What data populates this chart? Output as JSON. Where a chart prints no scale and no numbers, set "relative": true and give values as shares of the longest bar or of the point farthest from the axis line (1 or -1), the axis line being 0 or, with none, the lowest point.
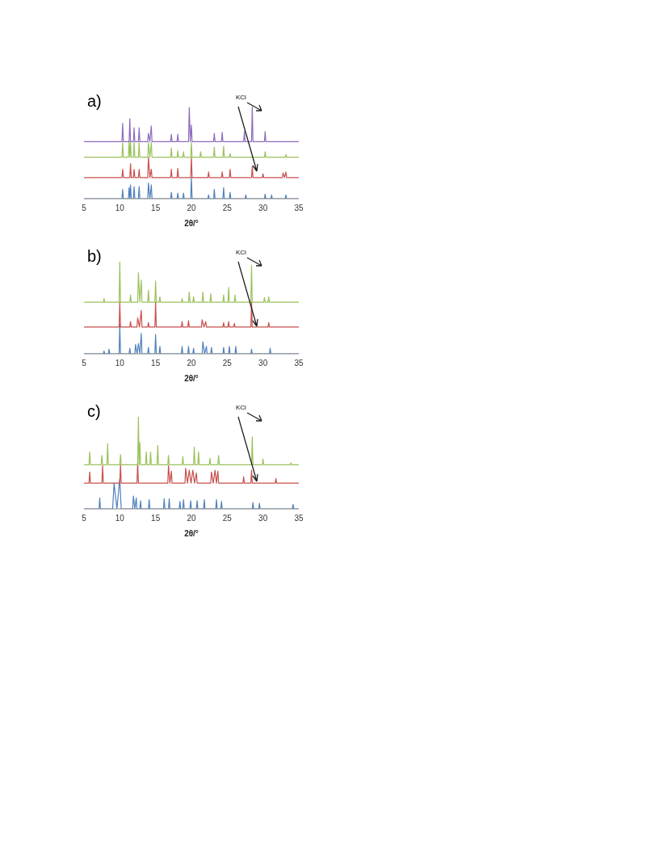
{
  "chart_data": [
    {
      "type": "line",
      "title": "a)",
      "xlabel": "2θ/°",
      "annotations": [
        "KCl"
      ],
      "relative": true,
      "xlim": [
        5,
        35
      ],
      "xticks": [
        5,
        10,
        15,
        20,
        25,
        30,
        35
      ],
      "grid": false,
      "legend": false,
      "marker": "none",
      "line_style": "solid",
      "series": [
        {
          "color": "#4f81bd",
          "x": [
            5,
            10.3,
            10.4,
            10.5,
            11.2,
            11.3,
            11.4,
            11.5,
            11.6,
            11.9,
            12,
            12.1,
            12.6,
            12.7,
            12.8,
            13.9,
            14,
            14.2,
            14.4,
            14.5,
            17.1,
            17.2,
            17.3,
            18,
            18.1,
            18.2,
            18.8,
            18.9,
            19,
            19.9,
            20,
            20.1,
            22.3,
            22.4,
            22.5,
            23.1,
            23.2,
            23.3,
            24.4,
            24.5,
            24.6,
            25.3,
            25.4,
            25.5,
            27.5,
            27.6,
            27.7,
            30.2,
            30.3,
            30.4,
            31.1,
            31.2,
            31.3,
            33.1,
            33.2,
            33.3,
            35
          ],
          "values": [
            0,
            0,
            0.1,
            0,
            0,
            0.12,
            0,
            0.15,
            0,
            0,
            0.13,
            0,
            0,
            0.13,
            0,
            0,
            0.17,
            0,
            0.15,
            0,
            0,
            0.07,
            0,
            0,
            0.06,
            0,
            0,
            0.06,
            0,
            0,
            0.23,
            0,
            0,
            0.04,
            0,
            0,
            0.1,
            0,
            0,
            0.12,
            0,
            0,
            0.07,
            0,
            0,
            0.04,
            0,
            0,
            0.05,
            0,
            0,
            0.04,
            0,
            0,
            0.04,
            0,
            0
          ]
        },
        {
          "color": "#c8504d",
          "x": [
            5,
            10.3,
            10.4,
            10.5,
            11.4,
            11.5,
            11.6,
            11.9,
            12,
            12.1,
            12.6,
            12.7,
            12.8,
            13.9,
            14,
            14.2,
            14.4,
            14.5,
            17.1,
            17.2,
            17.3,
            18,
            18.1,
            18.2,
            19.9,
            20,
            20.1,
            22.3,
            22.4,
            22.5,
            24.2,
            24.3,
            24.4,
            25.3,
            25.4,
            25.5,
            28.4,
            28.5,
            28.6,
            29.9,
            30,
            30.1,
            32.7,
            32.8,
            33,
            33.2,
            33.3,
            35
          ],
          "values": [
            0.23,
            0.23,
            0.32,
            0.23,
            0.23,
            0.38,
            0.23,
            0.23,
            0.32,
            0.23,
            0.23,
            0.32,
            0.23,
            0.23,
            0.45,
            0.23,
            0.32,
            0.23,
            0.23,
            0.32,
            0.23,
            0.23,
            0.33,
            0.23,
            0.23,
            0.45,
            0.23,
            0.23,
            0.29,
            0.23,
            0.23,
            0.29,
            0.23,
            0.23,
            0.32,
            0.23,
            0.23,
            0.35,
            0.23,
            0.23,
            0.27,
            0.23,
            0.23,
            0.28,
            0.23,
            0.29,
            0.23,
            0.23
          ]
        },
        {
          "color": "#9bc25b",
          "x": [
            5,
            10.3,
            10.4,
            10.5,
            11.2,
            11.3,
            11.4,
            11.5,
            11.6,
            11.9,
            12,
            12.1,
            12.6,
            12.7,
            12.8,
            13.9,
            14,
            14.2,
            14.4,
            14.5,
            17.1,
            17.2,
            17.3,
            18,
            18.1,
            18.2,
            18.8,
            18.9,
            19,
            19.9,
            20,
            20.1,
            21.2,
            21.3,
            21.4,
            23.1,
            23.2,
            23.3,
            24.4,
            24.5,
            24.6,
            25.3,
            25.4,
            25.5,
            30.2,
            30.3,
            30.4,
            33.1,
            33.2,
            33.3,
            35
          ],
          "values": [
            0.45,
            0.45,
            0.61,
            0.45,
            0.45,
            0.63,
            0.45,
            0.61,
            0.45,
            0.45,
            0.61,
            0.45,
            0.45,
            0.61,
            0.45,
            0.45,
            0.61,
            0.45,
            0.61,
            0.45,
            0.45,
            0.55,
            0.45,
            0.45,
            0.52,
            0.45,
            0.45,
            0.51,
            0.45,
            0.45,
            0.61,
            0.45,
            0.45,
            0.51,
            0.45,
            0.45,
            0.56,
            0.45,
            0.45,
            0.57,
            0.45,
            0.45,
            0.49,
            0.45,
            0.45,
            0.51,
            0.45,
            0.45,
            0.48,
            0.45,
            0.45
          ]
        },
        {
          "color": "#8e6bbf",
          "x": [
            5,
            10.3,
            10.4,
            10.5,
            11.3,
            11.4,
            11.5,
            11.9,
            12,
            12.1,
            12.6,
            12.7,
            12.8,
            13.9,
            14,
            14.2,
            14.4,
            14.5,
            17.1,
            17.2,
            17.3,
            18,
            18.1,
            18.2,
            19.6,
            19.7,
            19.85,
            20,
            20.1,
            23.1,
            23.2,
            23.3,
            24.2,
            24.3,
            24.4,
            27.3,
            27.4,
            27.5,
            28.4,
            28.5,
            28.6,
            30.2,
            30.3,
            30.4,
            35
          ],
          "values": [
            0.62,
            0.62,
            0.82,
            0.62,
            0.62,
            0.87,
            0.62,
            0.62,
            0.77,
            0.62,
            0.62,
            0.77,
            0.62,
            0.62,
            0.71,
            0.62,
            0.79,
            0.62,
            0.62,
            0.7,
            0.62,
            0.62,
            0.7,
            0.62,
            0.62,
            0.99,
            0.62,
            0.8,
            0.62,
            0.62,
            0.71,
            0.62,
            0.62,
            0.72,
            0.62,
            0.62,
            0.73,
            0.62,
            0.62,
            1,
            0.62,
            0.62,
            0.73,
            0.62,
            0.62
          ]
        }
      ]
    },
    {
      "type": "line",
      "title": "b)",
      "xlabel": "2θ/°",
      "annotations": [
        "KCl"
      ],
      "relative": true,
      "xlim": [
        5,
        35
      ],
      "xticks": [
        5,
        10,
        15,
        20,
        25,
        30,
        35
      ],
      "grid": false,
      "legend": false,
      "marker": "none",
      "line_style": "solid",
      "series": [
        {
          "color": "#4f81bd",
          "x": [
            5,
            7.7,
            7.8,
            7.9,
            8.4,
            8.5,
            8.6,
            9.9,
            10,
            10.1,
            11.3,
            11.4,
            11.5,
            12.1,
            12.2,
            12.4,
            12.6,
            12.8,
            13,
            13.1,
            13.9,
            14,
            14.1,
            14.9,
            15,
            15.1,
            15.5,
            15.6,
            15.7,
            18.6,
            18.7,
            18.8,
            19.5,
            19.6,
            19.7,
            20.2,
            20.3,
            20.4,
            21.5,
            21.6,
            21.85,
            22.1,
            22.2,
            22.7,
            22.8,
            22.9,
            24.4,
            24.5,
            24.6,
            25.2,
            25.3,
            25.4,
            26.1,
            26.2,
            26.3,
            28.3,
            28.4,
            28.5,
            30.9,
            31,
            31.1,
            35
          ],
          "values": [
            0,
            0,
            0.03,
            0,
            0,
            0.05,
            0,
            0,
            0.32,
            0,
            0,
            0.06,
            0,
            0,
            0.1,
            0,
            0.11,
            0,
            0.22,
            0,
            0,
            0.07,
            0,
            0,
            0.21,
            0,
            0,
            0.08,
            0,
            0,
            0.08,
            0,
            0,
            0.08,
            0,
            0,
            0.06,
            0,
            0,
            0.13,
            0,
            0.08,
            0,
            0,
            0.07,
            0,
            0,
            0.07,
            0,
            0,
            0.08,
            0,
            0,
            0.08,
            0,
            0,
            0.05,
            0,
            0,
            0.06,
            0,
            0
          ]
        },
        {
          "color": "#c8504d",
          "x": [
            5,
            9.9,
            10,
            10.1,
            11.4,
            11.5,
            11.6,
            12.4,
            12.5,
            12.75,
            13,
            13.1,
            13.9,
            14,
            14.1,
            14.9,
            15,
            15.1,
            18.6,
            18.7,
            18.8,
            19.5,
            19.6,
            19.7,
            21.4,
            21.5,
            21.75,
            22,
            22.1,
            24.4,
            24.5,
            24.6,
            25.1,
            25.2,
            25.3,
            25.9,
            26,
            26.1,
            28.3,
            28.4,
            28.5,
            30.7,
            30.8,
            30.9,
            35
          ],
          "values": [
            0.29,
            0.29,
            0.56,
            0.29,
            0.29,
            0.35,
            0.29,
            0.29,
            0.39,
            0.29,
            0.47,
            0.29,
            0.29,
            0.34,
            0.29,
            0.29,
            0.56,
            0.29,
            0.29,
            0.35,
            0.29,
            0.29,
            0.36,
            0.29,
            0.29,
            0.37,
            0.29,
            0.35,
            0.29,
            0.29,
            0.34,
            0.29,
            0.29,
            0.35,
            0.29,
            0.29,
            0.33,
            0.29,
            0.29,
            0.56,
            0.29,
            0.29,
            0.34,
            0.29,
            0.29
          ]
        },
        {
          "color": "#9bc25b",
          "x": [
            5,
            7.7,
            7.8,
            7.9,
            9.9,
            10,
            10.1,
            11.4,
            11.5,
            11.6,
            12.5,
            12.6,
            12.8,
            13,
            13.1,
            13.9,
            14,
            14.1,
            14.9,
            15,
            15.1,
            15.5,
            15.6,
            15.7,
            18.6,
            18.7,
            18.8,
            19.6,
            19.7,
            19.8,
            20.2,
            20.3,
            20.4,
            21.5,
            21.6,
            21.7,
            22.6,
            22.7,
            22.8,
            24.4,
            24.5,
            24.6,
            25.1,
            25.2,
            25.3,
            26,
            26.1,
            26.2,
            28.3,
            28.4,
            28.5,
            30.1,
            30.2,
            30.3,
            30.7,
            30.8,
            30.9,
            35
          ],
          "values": [
            0.56,
            0.56,
            0.6,
            0.56,
            0.56,
            1,
            0.56,
            0.56,
            0.64,
            0.56,
            0.56,
            0.88,
            0.56,
            0.8,
            0.56,
            0.56,
            0.69,
            0.56,
            0.56,
            0.79,
            0.56,
            0.56,
            0.62,
            0.56,
            0.56,
            0.6,
            0.56,
            0.56,
            0.67,
            0.56,
            0.56,
            0.62,
            0.56,
            0.56,
            0.67,
            0.56,
            0.56,
            0.65,
            0.56,
            0.56,
            0.64,
            0.56,
            0.56,
            0.72,
            0.56,
            0.56,
            0.64,
            0.56,
            0.56,
            0.96,
            0.56,
            0.56,
            0.61,
            0.56,
            0.56,
            0.62,
            0.56,
            0.56
          ]
        }
      ]
    },
    {
      "type": "line",
      "title": "c)",
      "xlabel": "2θ/°",
      "annotations": [
        "KCl"
      ],
      "relative": true,
      "xlim": [
        5,
        35
      ],
      "xticks": [
        5,
        10,
        15,
        20,
        25,
        30,
        35
      ],
      "grid": false,
      "legend": false,
      "marker": "none",
      "line_style": "solid",
      "series": [
        {
          "color": "#4f81bd",
          "x": [
            5,
            7.1,
            7.2,
            7.3,
            9,
            9.2,
            9.6,
            10,
            10.2,
            11.8,
            11.9,
            12.1,
            12.3,
            12.4,
            12.8,
            12.9,
            13,
            14,
            14.1,
            14.2,
            16.1,
            16.2,
            16.3,
            16.8,
            16.9,
            17,
            18.3,
            18.4,
            18.5,
            18.8,
            18.9,
            19,
            19.8,
            19.9,
            20,
            20.7,
            20.8,
            20.9,
            21.7,
            21.8,
            21.9,
            23.4,
            23.5,
            23.6,
            24.1,
            24.2,
            24.3,
            28.5,
            28.6,
            28.7,
            29.4,
            29.5,
            29.6,
            34.1,
            34.2,
            34.3,
            35
          ],
          "values": [
            0,
            0,
            0.12,
            0,
            0,
            0.28,
            0,
            0.33,
            0,
            0,
            0.14,
            0,
            0.12,
            0,
            0,
            0.09,
            0,
            0,
            0.1,
            0,
            0,
            0.11,
            0,
            0,
            0.11,
            0,
            0,
            0.08,
            0,
            0,
            0.1,
            0,
            0,
            0.09,
            0,
            0,
            0.09,
            0,
            0,
            0.1,
            0,
            0,
            0.1,
            0,
            0,
            0.08,
            0,
            0,
            0.07,
            0,
            0,
            0.06,
            0,
            0,
            0.05,
            0,
            0
          ]
        },
        {
          "color": "#c8504d",
          "x": [
            5,
            5.7,
            5.8,
            5.9,
            7.5,
            7.6,
            7.7,
            10,
            10.1,
            10.2,
            12.4,
            12.5,
            12.6,
            16.7,
            16.8,
            17,
            17.2,
            17.3,
            19.1,
            19.2,
            19.45,
            19.7,
            19.95,
            20.2,
            20.45,
            20.7,
            20.8,
            22.7,
            22.8,
            23.05,
            23.3,
            23.5,
            23.7,
            23.8,
            27.2,
            27.3,
            27.4,
            28.3,
            28.4,
            28.5,
            31.7,
            31.8,
            31.9,
            35
          ],
          "values": [
            0.28,
            0.28,
            0.4,
            0.28,
            0.28,
            0.47,
            0.28,
            0.28,
            0.48,
            0.28,
            0.28,
            0.51,
            0.28,
            0.28,
            0.47,
            0.28,
            0.41,
            0.28,
            0.28,
            0.44,
            0.28,
            0.42,
            0.28,
            0.42,
            0.28,
            0.39,
            0.28,
            0.28,
            0.4,
            0.28,
            0.42,
            0.28,
            0.41,
            0.28,
            0.28,
            0.35,
            0.28,
            0.28,
            0.42,
            0.28,
            0.28,
            0.33,
            0.28,
            0.28
          ]
        },
        {
          "color": "#9bc25b",
          "x": [
            5,
            5.7,
            5.8,
            5.9,
            7.4,
            7.5,
            7.6,
            8.2,
            8.3,
            8.4,
            10,
            10.1,
            10.2,
            12.5,
            12.6,
            12.7,
            12.8,
            12.9,
            13.6,
            13.7,
            13.8,
            14.2,
            14.3,
            14.4,
            15.2,
            15.3,
            15.4,
            16.7,
            16.8,
            16.9,
            18.7,
            18.8,
            18.9,
            20.3,
            20.4,
            20.5,
            20.9,
            21,
            21.1,
            22.5,
            22.6,
            22.7,
            23.7,
            23.8,
            23.9,
            28.4,
            28.5,
            28.6,
            29.9,
            30,
            30.1,
            33.8,
            33.9,
            34,
            35
          ],
          "values": [
            0.48,
            0.48,
            0.62,
            0.48,
            0.48,
            0.58,
            0.48,
            0.48,
            0.71,
            0.48,
            0.48,
            0.59,
            0.48,
            0.48,
            1,
            0.48,
            0.72,
            0.48,
            0.48,
            0.62,
            0.48,
            0.48,
            0.62,
            0.48,
            0.48,
            0.69,
            0.48,
            0.48,
            0.58,
            0.48,
            0.48,
            0.57,
            0.48,
            0.48,
            0.67,
            0.48,
            0.48,
            0.62,
            0.48,
            0.48,
            0.55,
            0.48,
            0.48,
            0.58,
            0.48,
            0.48,
            0.78,
            0.48,
            0.48,
            0.54,
            0.48,
            0.48,
            0.5,
            0.48,
            0.48
          ]
        }
      ]
    }
  ]
}
